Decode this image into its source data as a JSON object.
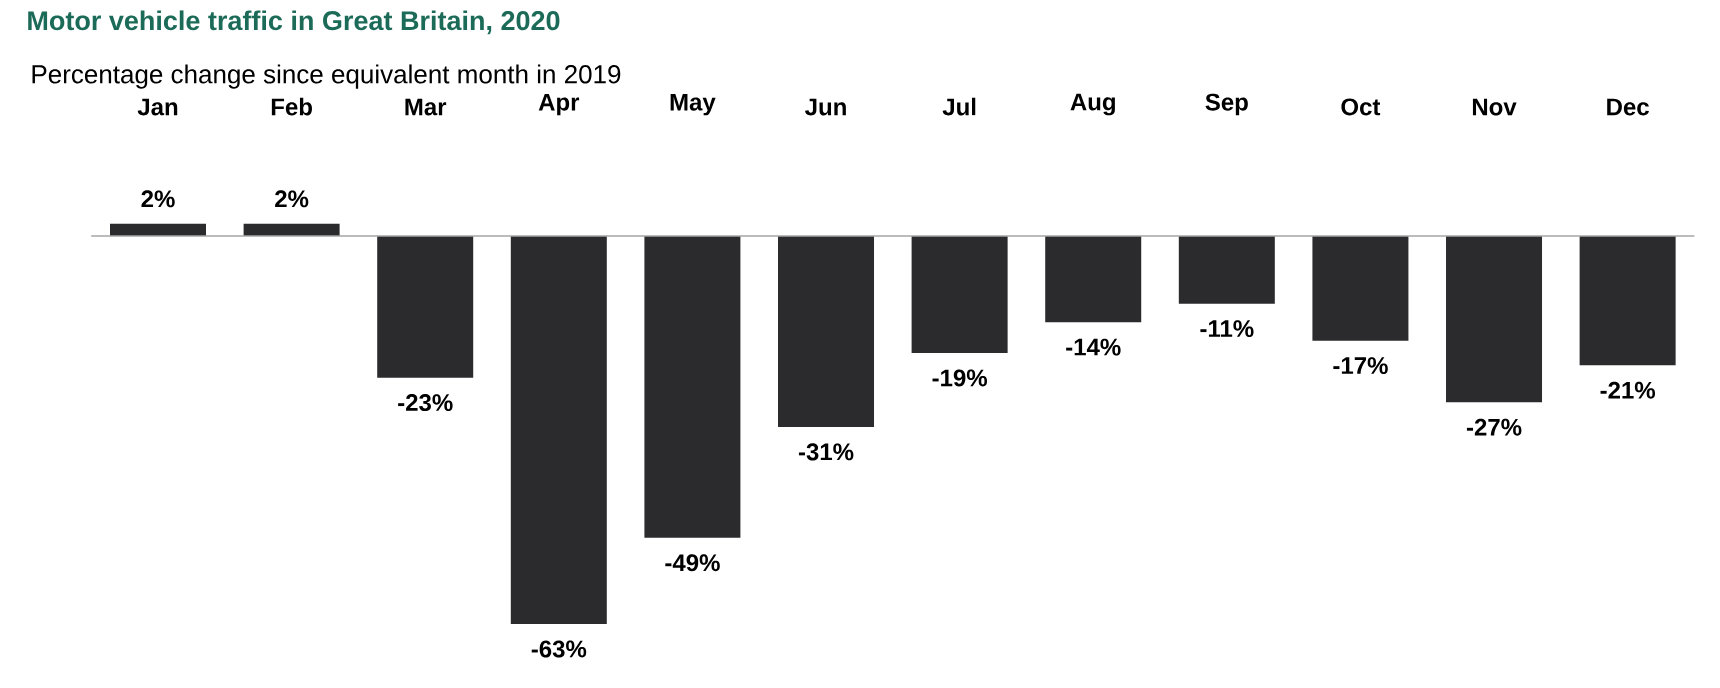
{
  "chart_data": {
    "type": "bar",
    "title": "Motor vehicle traffic in Great Britain, 2020",
    "subtitle": "Percentage change since equivalent month in 2019",
    "categories": [
      "Jan",
      "Feb",
      "Mar",
      "Apr",
      "May",
      "Jun",
      "Jul",
      "Aug",
      "Sep",
      "Oct",
      "Nov",
      "Dec"
    ],
    "values": [
      2,
      2,
      -23,
      -63,
      -49,
      -31,
      -19,
      -14,
      -11,
      -17,
      -27,
      -21
    ],
    "value_labels": [
      "2%",
      "2%",
      "-23%",
      "-63%",
      "-49%",
      "-31%",
      "-19%",
      "-14%",
      "-11%",
      "-17%",
      "-27%",
      "-21%"
    ],
    "color": "#2b2b2e"
  }
}
